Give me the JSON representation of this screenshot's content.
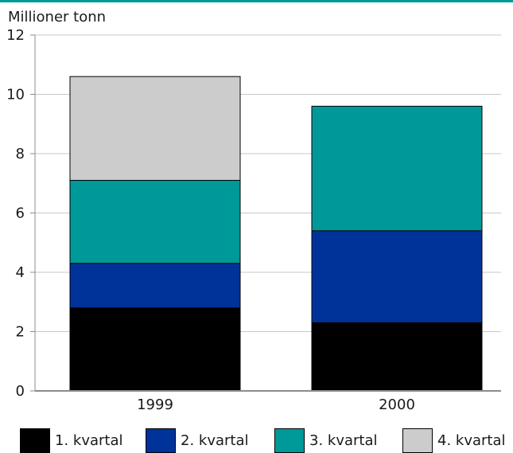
{
  "chart_data": {
    "type": "bar",
    "stacked": true,
    "categories": [
      "1999",
      "2000"
    ],
    "series": [
      {
        "name": "1. kvartal",
        "color": "#000000",
        "values": [
          2.8,
          2.3
        ]
      },
      {
        "name": "2. kvartal",
        "color": "#003399",
        "values": [
          1.5,
          3.1
        ]
      },
      {
        "name": "3. kvartal",
        "color": "#009999",
        "values": [
          2.8,
          4.2
        ]
      },
      {
        "name": "4. kvartal",
        "color": "#cccccc",
        "values": [
          3.5,
          0
        ]
      }
    ],
    "ylabel": "Millioner tonn",
    "ylim": [
      0,
      12
    ],
    "yticks": [
      0,
      2,
      4,
      6,
      8,
      10,
      12
    ],
    "yticks_labels": [
      "0",
      "2",
      "4",
      "6",
      "8",
      "10",
      "12"
    ],
    "grid": true,
    "legend_position": "bottom",
    "accent_color": "#009999"
  }
}
